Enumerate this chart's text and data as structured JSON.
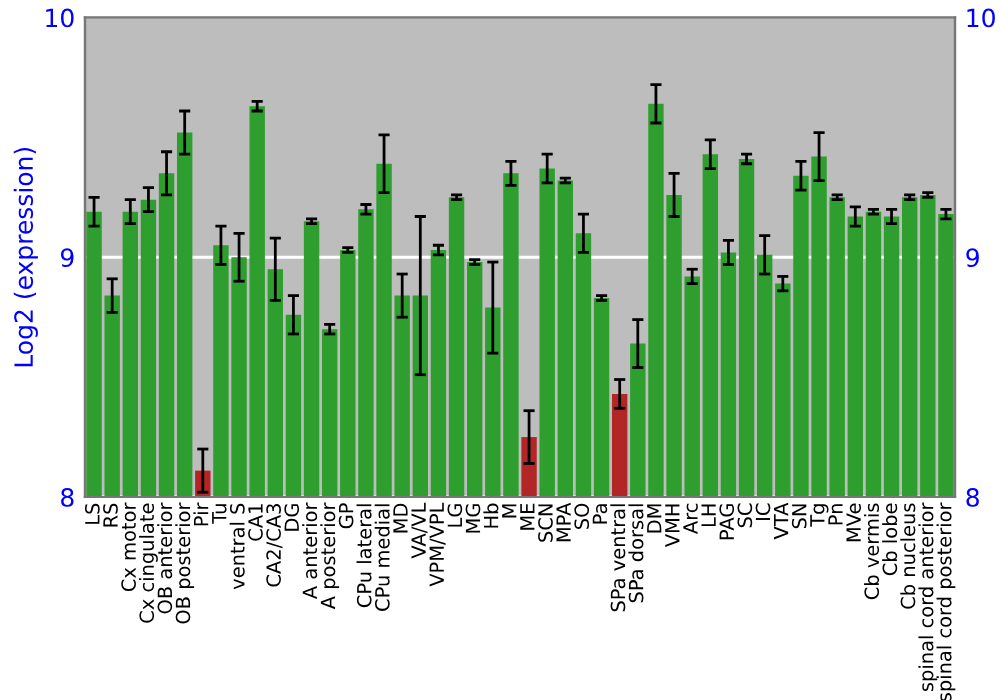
{
  "chart_data": {
    "type": "bar",
    "ylabel": "Log2 (expression)",
    "categories": [
      "LS",
      "RS",
      "Cx motor",
      "Cx cingulate",
      "OB anterior",
      "OB posterior",
      "Pir",
      "Tu",
      "ventral S",
      "CA1",
      "CA2/CA3",
      "DG",
      "A anterior",
      "A posterior",
      "GP",
      "CPu lateral",
      "CPu medial",
      "MD",
      "VA/VL",
      "VPM/VPL",
      "LG",
      "MG",
      "Hb",
      "M",
      "ME",
      "SCN",
      "MPA",
      "SO",
      "Pa",
      "SPa ventral",
      "SPa dorsal",
      "DM",
      "VMH",
      "Arc",
      "LH",
      "PAG",
      "SC",
      "IC",
      "VTA",
      "SN",
      "Tg",
      "Pn",
      "MVe",
      "Cb vermis",
      "Cb lobe",
      "Cb nucleus",
      "spinal cord anterior",
      "spinal cord posterior"
    ],
    "values": [
      9.19,
      8.84,
      9.19,
      9.24,
      9.35,
      9.52,
      8.11,
      9.05,
      9.0,
      9.63,
      8.95,
      8.76,
      9.15,
      8.7,
      9.03,
      9.2,
      9.39,
      8.84,
      8.84,
      9.03,
      9.25,
      8.98,
      8.79,
      9.35,
      8.25,
      9.37,
      9.32,
      9.1,
      8.83,
      8.43,
      8.64,
      9.64,
      9.26,
      8.92,
      9.43,
      9.02,
      9.41,
      9.01,
      8.89,
      9.34,
      9.42,
      9.25,
      9.17,
      9.19,
      9.17,
      9.25,
      9.26,
      9.18
    ],
    "errors": [
      0.06,
      0.07,
      0.05,
      0.05,
      0.09,
      0.09,
      0.09,
      0.08,
      0.1,
      0.02,
      0.13,
      0.08,
      0.01,
      0.02,
      0.01,
      0.02,
      0.12,
      0.09,
      0.33,
      0.02,
      0.01,
      0.01,
      0.19,
      0.05,
      0.11,
      0.06,
      0.01,
      0.08,
      0.01,
      0.06,
      0.1,
      0.08,
      0.09,
      0.03,
      0.06,
      0.05,
      0.02,
      0.08,
      0.03,
      0.06,
      0.1,
      0.01,
      0.04,
      0.01,
      0.03,
      0.01,
      0.01,
      0.02
    ],
    "colors": [
      "#2e9e2e",
      "#2e9e2e",
      "#2e9e2e",
      "#2e9e2e",
      "#2e9e2e",
      "#2e9e2e",
      "#b22626",
      "#2e9e2e",
      "#2e9e2e",
      "#2e9e2e",
      "#2e9e2e",
      "#2e9e2e",
      "#2e9e2e",
      "#2e9e2e",
      "#2e9e2e",
      "#2e9e2e",
      "#2e9e2e",
      "#2e9e2e",
      "#2e9e2e",
      "#2e9e2e",
      "#2e9e2e",
      "#2e9e2e",
      "#2e9e2e",
      "#2e9e2e",
      "#b22626",
      "#2e9e2e",
      "#2e9e2e",
      "#2e9e2e",
      "#2e9e2e",
      "#b22626",
      "#2e9e2e",
      "#2e9e2e",
      "#2e9e2e",
      "#2e9e2e",
      "#2e9e2e",
      "#2e9e2e",
      "#2e9e2e",
      "#2e9e2e",
      "#2e9e2e",
      "#2e9e2e",
      "#2e9e2e",
      "#2e9e2e",
      "#2e9e2e",
      "#2e9e2e",
      "#2e9e2e",
      "#2e9e2e",
      "#2e9e2e",
      "#2e9e2e"
    ],
    "ylim": [
      8,
      10
    ],
    "yticks": [
      8,
      9,
      10
    ],
    "y2lim": [
      8,
      10
    ],
    "y2ticks": [
      8,
      9,
      10
    ],
    "grid": "y"
  }
}
